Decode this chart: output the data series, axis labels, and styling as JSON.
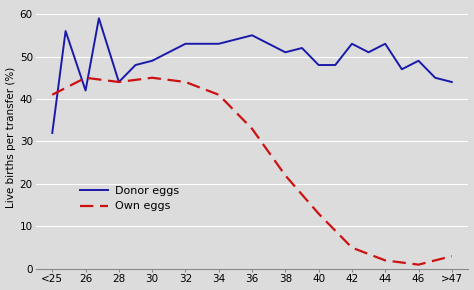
{
  "x_labels": [
    "<25",
    "26",
    "28",
    "30",
    "32",
    "34",
    "36",
    "38",
    "40",
    "42",
    "44",
    "46",
    ">47"
  ],
  "x_positions": [
    0,
    1,
    2,
    3,
    4,
    5,
    6,
    7,
    8,
    9,
    10,
    11,
    12
  ],
  "donor_eggs_x": [
    0,
    0.4,
    1,
    1.4,
    2,
    2.5,
    3,
    4,
    5,
    5.5,
    6,
    7,
    7.5,
    8,
    8.5,
    9,
    9.5,
    10,
    10.5,
    11,
    11.5,
    12
  ],
  "donor_eggs_y": [
    32,
    56,
    42,
    59,
    44,
    48,
    49,
    53,
    53,
    54,
    55,
    51,
    52,
    48,
    48,
    53,
    51,
    53,
    47,
    49,
    45,
    44
  ],
  "own_eggs_x": [
    0,
    1,
    2,
    3,
    4,
    5,
    6,
    7,
    8,
    9,
    10,
    11,
    12
  ],
  "own_eggs_y": [
    41,
    45,
    44,
    45,
    44,
    41,
    33,
    22,
    13,
    5,
    2,
    1,
    3
  ],
  "ylabel": "Live births per transfer (%)",
  "ylim": [
    0,
    62
  ],
  "yticks": [
    0,
    10,
    20,
    30,
    40,
    50,
    60
  ],
  "donor_color": "#1a1aaa",
  "own_color": "#cc1111",
  "bg_color": "#dcdcdc",
  "plot_bg_color": "#dcdcdc",
  "grid_color": "#c0c0c0",
  "legend_donor": "Donor eggs",
  "legend_own": "Own eggs"
}
